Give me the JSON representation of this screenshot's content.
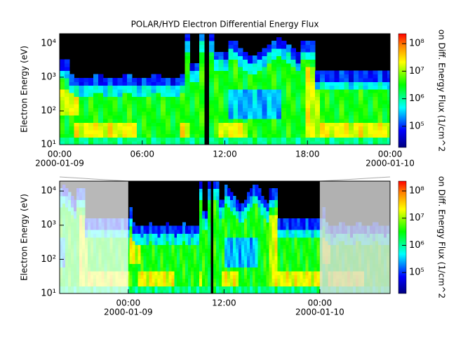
{
  "chart_data": [
    {
      "type": "spectrogram",
      "title": "POLAR/HYD  Electron Differential Energy Flux",
      "ylabel": "Electron Energy (eV)",
      "log_y": true,
      "ylim": [
        10,
        19500
      ],
      "yticks": [
        {
          "value": 10,
          "label": "10¹"
        },
        {
          "value": 100,
          "label": "10²"
        },
        {
          "value": 1000,
          "label": "10³"
        },
        {
          "value": 10000,
          "label": "10⁴"
        }
      ],
      "xlim": [
        0,
        24
      ],
      "xticks": [
        {
          "value": 0,
          "label": "00:00"
        },
        {
          "value": 6,
          "label": "06:00"
        },
        {
          "value": 12,
          "label": "12:00"
        },
        {
          "value": 18,
          "label": "18:00"
        },
        {
          "value": 24,
          "label": "00:00"
        }
      ],
      "xdates": [
        {
          "value": 0,
          "label": "2000-01-09"
        },
        {
          "value": 24,
          "label": "2000-01-10"
        }
      ],
      "colorbar_label": "on Diff. Energy Flux (1/cm^2",
      "zlim": [
        17000,
        230000000
      ],
      "zticks": [
        {
          "value": 100000,
          "label": "10⁵"
        },
        {
          "value": 1000000,
          "label": "10⁶"
        },
        {
          "value": 10000000,
          "label": "10⁷"
        },
        {
          "value": 100000000,
          "label": "10⁸"
        }
      ]
    },
    {
      "type": "spectrogram",
      "ylabel": "Electron Energy (eV)",
      "log_y": true,
      "ylim": [
        10,
        19500
      ],
      "yticks": [
        {
          "value": 10,
          "label": "10¹"
        },
        {
          "value": 100,
          "label": "10²"
        },
        {
          "value": 1000,
          "label": "10³"
        },
        {
          "value": 10000,
          "label": "10⁴"
        }
      ],
      "xlim": [
        -8.6,
        32.8
      ],
      "xticks": [
        {
          "value": 0,
          "label": "00:00"
        },
        {
          "value": 12,
          "label": "12:00"
        },
        {
          "value": 24,
          "label": "00:00"
        }
      ],
      "xdates": [
        {
          "value": 0,
          "label": "2000-01-09"
        },
        {
          "value": 24,
          "label": "2000-01-10"
        }
      ],
      "highlight": [
        0,
        24
      ],
      "colorbar_label": "on Diff. Energy Flux (1/cm^2",
      "zlim": [
        17000,
        230000000
      ],
      "zticks": [
        {
          "value": 100000,
          "label": "10⁵"
        },
        {
          "value": 1000000,
          "label": "10⁶"
        },
        {
          "value": 10000000,
          "label": "10⁷"
        },
        {
          "value": 100000000,
          "label": "10⁸"
        }
      ]
    }
  ]
}
